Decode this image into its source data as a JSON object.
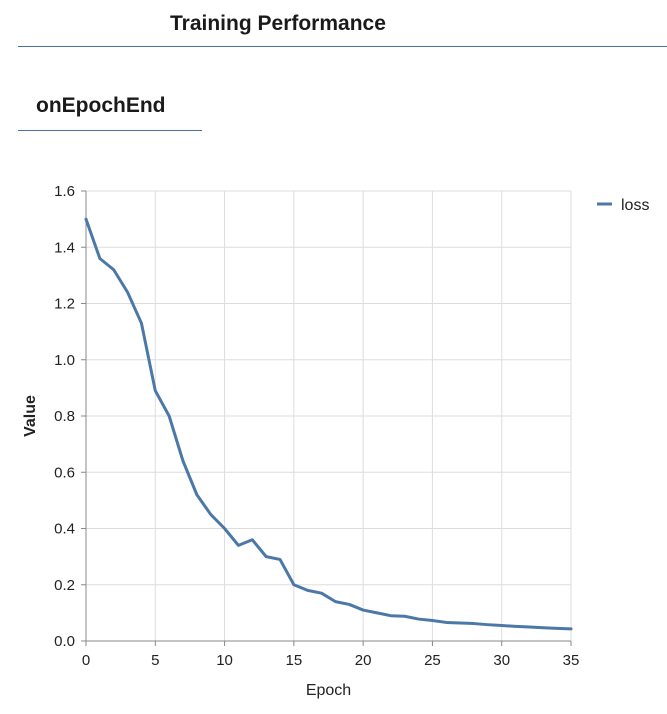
{
  "header": {
    "title": "Training Performance"
  },
  "tab": {
    "title": "onEpochEnd"
  },
  "chart_data": {
    "type": "line",
    "title": "",
    "xlabel": "Epoch",
    "ylabel": "Value",
    "xlim": [
      0,
      35
    ],
    "ylim": [
      0,
      1.6
    ],
    "x_ticks": [
      "0",
      "5",
      "10",
      "15",
      "20",
      "25",
      "30",
      "35"
    ],
    "y_ticks": [
      "0.0",
      "0.2",
      "0.4",
      "0.6",
      "0.8",
      "1.0",
      "1.2",
      "1.4",
      "1.6"
    ],
    "grid": true,
    "legend_position": "top-right",
    "series": [
      {
        "name": "loss",
        "color": "#4c78a8",
        "x": [
          0,
          1,
          2,
          3,
          4,
          5,
          6,
          7,
          8,
          9,
          10,
          11,
          12,
          13,
          14,
          15,
          16,
          17,
          18,
          19,
          20,
          21,
          22,
          23,
          24,
          25,
          26,
          27,
          28,
          29,
          30,
          31,
          32,
          33,
          34,
          35
        ],
        "values": [
          1.5,
          1.36,
          1.32,
          1.24,
          1.13,
          0.89,
          0.8,
          0.64,
          0.52,
          0.45,
          0.4,
          0.34,
          0.36,
          0.3,
          0.29,
          0.2,
          0.18,
          0.17,
          0.14,
          0.13,
          0.11,
          0.1,
          0.09,
          0.088,
          0.078,
          0.073,
          0.066,
          0.064,
          0.062,
          0.058,
          0.055,
          0.052,
          0.05,
          0.047,
          0.045,
          0.043
        ]
      }
    ]
  }
}
